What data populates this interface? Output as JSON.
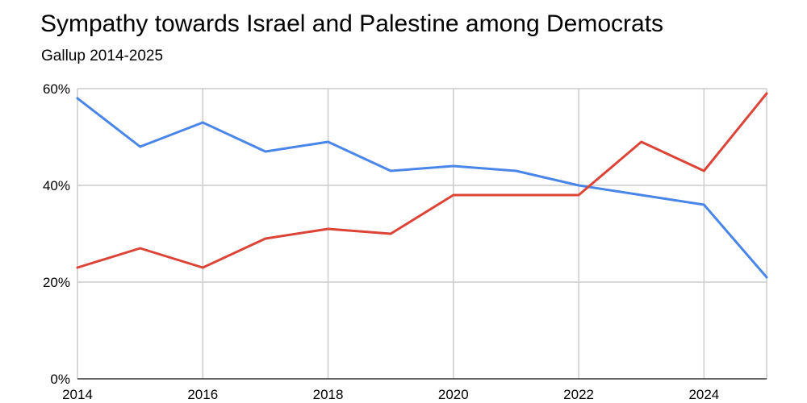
{
  "chart_data": {
    "type": "line",
    "title": "Sympathy towards Israel and Palestine among Democrats",
    "subtitle": "Gallup 2014-2025",
    "xlabel": "",
    "ylabel": "",
    "x": [
      2014,
      2015,
      2016,
      2017,
      2018,
      2019,
      2020,
      2021,
      2022,
      2023,
      2024,
      2025
    ],
    "xlim": [
      2014,
      2025
    ],
    "x_ticks": [
      "2014",
      "2016",
      "2018",
      "2020",
      "2022",
      "2024"
    ],
    "ylim": [
      0,
      60
    ],
    "y_ticks": [
      "0%",
      "20%",
      "40%",
      "60%"
    ],
    "grid": true,
    "legend": "none",
    "series": [
      {
        "color": "#4a86e8",
        "values": [
          58,
          48,
          53,
          47,
          49,
          43,
          44,
          43,
          40,
          38,
          36,
          21
        ]
      },
      {
        "color": "#db4437",
        "values": [
          23,
          27,
          23,
          29,
          31,
          30,
          38,
          38,
          38,
          49,
          43,
          59
        ]
      }
    ]
  }
}
